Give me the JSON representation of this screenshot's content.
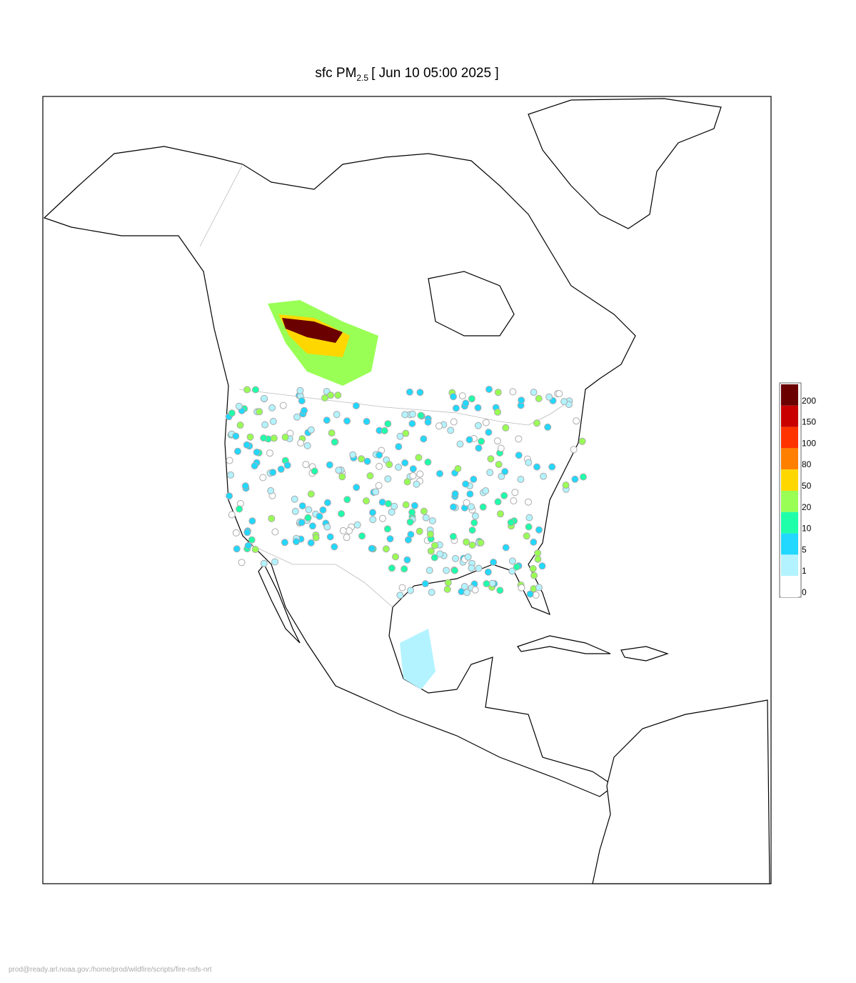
{
  "header": {
    "title_main": "sfc PM",
    "title_sub": "2.5",
    "title_rest": "[ Jun 10 05:00 2025 ]"
  },
  "legend": {
    "levels": [
      {
        "label": "200",
        "color": "#6b0000"
      },
      {
        "label": "150",
        "color": "#c80000"
      },
      {
        "label": "100",
        "color": "#ff3300"
      },
      {
        "label": "80",
        "color": "#ff8000"
      },
      {
        "label": "50",
        "color": "#ffd700"
      },
      {
        "label": "20",
        "color": "#99ff55"
      },
      {
        "label": "10",
        "color": "#1fffaa"
      },
      {
        "label": "5",
        "color": "#22d8ff"
      },
      {
        "label": "1",
        "color": "#b3f3ff"
      },
      {
        "label": "0",
        "color": "#ffffff"
      }
    ]
  },
  "footer": {
    "text": "prod@ready.arl.noaa.gov:/home/prod/wildfire/scripts/fire-nsfs-nrt"
  }
}
